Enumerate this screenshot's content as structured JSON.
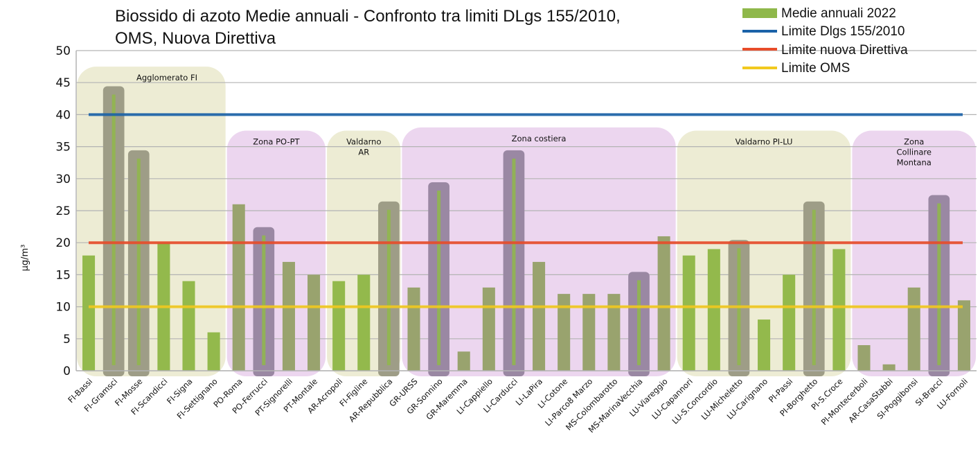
{
  "chart_data": {
    "type": "bar",
    "title_lines": [
      "Biossido di azoto Medie annuali - Confronto tra limiti DLgs 155/2010,",
      "OMS, Nuova Direttiva"
    ],
    "xlabel": "",
    "ylabel": "µg/m³",
    "ylim": [
      0,
      50
    ],
    "yticks": [
      0,
      5,
      10,
      15,
      20,
      25,
      30,
      35,
      40,
      45,
      50
    ],
    "grid": true,
    "legend_position": "top-right",
    "categories": [
      "FI-Bassi",
      "FI-Gramsci",
      "FI-Mosse",
      "FI-Scandicci",
      "FI-Signa",
      "FI-Settignano",
      "PO-Roma",
      "PO-Ferrucci",
      "PT-Signorelli",
      "PT-Montale",
      "AR-Acropoli",
      "FI-Figline",
      "AR-Repubblica",
      "GR-URSS",
      "GR-Sonnino",
      "GR-Maremma",
      "LI-Cappiello",
      "LI-Carducci",
      "LI-LaPira",
      "LI-Cotone",
      "LI-Parco8 Marzo",
      "MS-Colombarotto",
      "MS-MarinaVecchia",
      "LU-Viareggio",
      "LU-Capannori",
      "LU-S.Concordio",
      "LU-Micheletto",
      "LU-Carignano",
      "PI-Passi",
      "PI-Borghetto",
      "PI-S.Croce",
      "PI-Montecerboli",
      "AR-CasaStabbi",
      "SI-Poggibonsi",
      "SI-Bracci",
      "LU-Fornoli"
    ],
    "series": [
      {
        "name": "Medie annuali 2022",
        "kind": "bar",
        "color": "#8fb84a",
        "values": [
          18,
          44,
          34,
          20,
          14,
          6,
          26,
          22,
          17,
          15,
          14,
          15,
          26,
          13,
          29,
          3,
          13,
          34,
          17,
          12,
          12,
          12,
          15,
          21,
          18,
          19,
          20,
          8,
          15,
          26,
          19,
          4,
          1,
          13,
          27,
          11
        ]
      },
      {
        "name": "Limite Dlgs 155/2010",
        "kind": "line",
        "color": "#1a62a8",
        "value": 40
      },
      {
        "name": "Limite nuova Direttiva",
        "kind": "line",
        "color": "#e84c2a",
        "value": 20
      },
      {
        "name": "Limite OMS",
        "kind": "line",
        "color": "#f2c91e",
        "value": 10
      }
    ],
    "highlighted_stations": [
      "FI-Gramsci",
      "FI-Mosse",
      "PO-Ferrucci",
      "AR-Repubblica",
      "GR-Sonnino",
      "LI-Carducci",
      "MS-MarinaVecchia",
      "LU-Micheletto",
      "PI-Borghetto",
      "SI-Bracci"
    ],
    "zones": [
      {
        "label": "Agglomerato FI",
        "from": "FI-Bassi",
        "to": "FI-Settignano",
        "color": "#ecebd2"
      },
      {
        "label": "Zona PO-PT",
        "from": "PO-Roma",
        "to": "PT-Montale",
        "color": "#ebd4ee"
      },
      {
        "label": "Valdarno\nAR",
        "from": "AR-Acropoli",
        "to": "AR-Repubblica",
        "color": "#ecebd2"
      },
      {
        "label": "Zona costiera",
        "from": "GR-URSS",
        "to": "LU-Viareggio",
        "color": "#ebd4ee"
      },
      {
        "label": "Valdarno  PI-LU",
        "from": "LU-Capannori",
        "to": "PI-S.Croce",
        "color": "#ecebd2"
      },
      {
        "label": "Zona\nCollinare\nMontana",
        "from": "PI-Montecerboli",
        "to": "LU-Fornoli",
        "color": "#ebd4ee"
      }
    ]
  }
}
